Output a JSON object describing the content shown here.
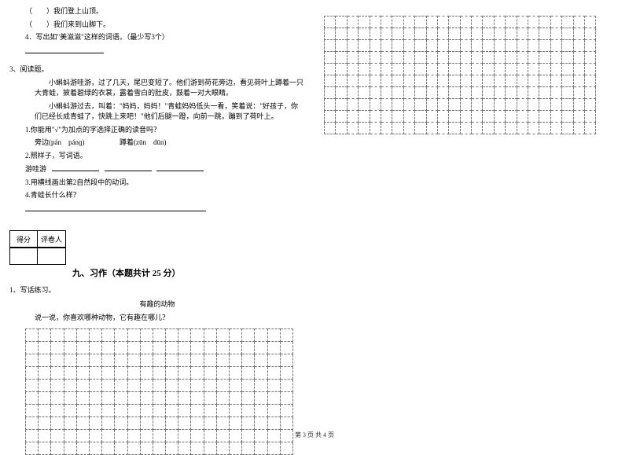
{
  "left": {
    "blank1": "（　　）我们登上山顶。",
    "blank2": "（　　）我们来到山脚下。",
    "q4": "4．写出如\"美滋滋\"这样的词语。（最少写3个）",
    "readHeader": "3、阅读题。",
    "para1": "小蝌蚪游哇游，过了几天，尾巴变短了。他们游到荷花旁边，看见荷叶上蹲着一只大青蛙，披着碧绿的衣裳，露着雪白的肚皮，鼓着一对大眼睛。",
    "para2": "小蝌蚪游过去，叫着：\"妈妈，妈妈！\"青蛙妈妈低头一看，笑着说：\"好孩子，你们已经长成青蛙了，快跳上来吧！\"他们后腿一蹬，向前一跳，蹦到了荷叶上。",
    "rq1": "1.你能用\"√\"为加点的字选择正确的读音吗？",
    "rq1a": "旁边(pán　pánɡ)",
    "rq1b": "蹲着(zūn　dūn)",
    "rq2": "2.照样子，写词语。",
    "rq2a": "游哇游",
    "rq3": "3.用横线画出第2自然段中的动词。",
    "rq4": "4.青蛙长什么样？",
    "scoreA": "得分",
    "scoreB": "评卷人",
    "sectionTitle": "九、习作（本题共计 25 分）",
    "xz1": "1、写话练习。",
    "xzTitle": "有趣的动物",
    "xzPrompt": "说一说，你喜欢哪种动物，它有趣在哪儿？"
  },
  "footer": "第 3 页 共 4 页",
  "style": {
    "fontColor": "#000000",
    "bgColor": "#ffffff",
    "gridDash": "#777777"
  }
}
